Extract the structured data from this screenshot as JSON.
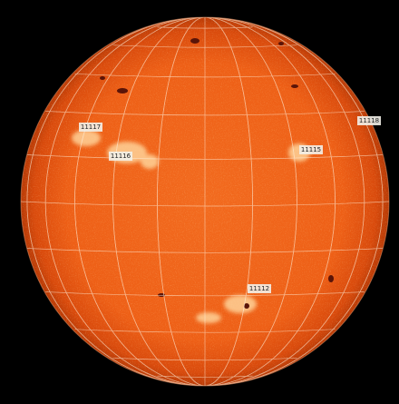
{
  "active_regions": [
    {
      "label": "11117"
    },
    {
      "label": "11116"
    },
    {
      "label": "11115"
    },
    {
      "label": "11118"
    },
    {
      "label": "11112"
    }
  ]
}
